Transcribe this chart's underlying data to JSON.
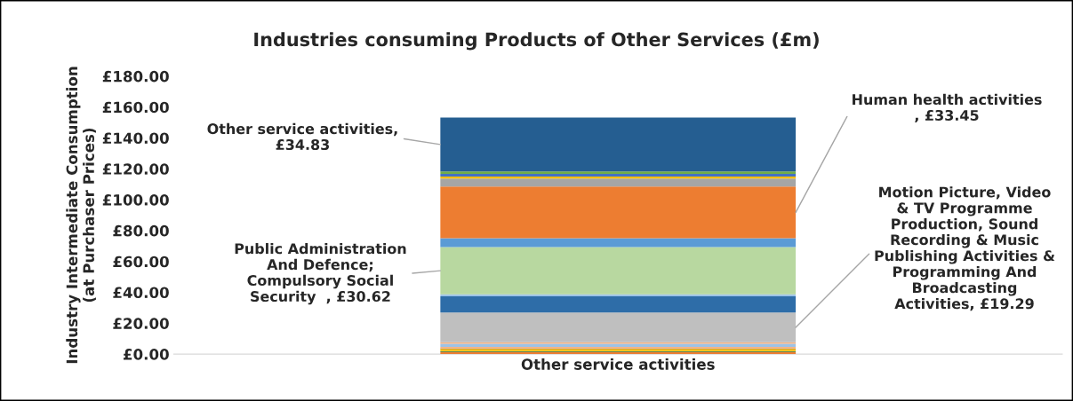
{
  "chart_data": {
    "type": "bar",
    "stacked": true,
    "title": "Industries consuming Products of Other Services (£m)",
    "ylabel": "Industry Intermediate Consumption\n(at Purchaser Prices)",
    "categories": [
      "Other service activities"
    ],
    "ylim": [
      0,
      180
    ],
    "yticks": [
      {
        "value": 0,
        "label": "£0.00"
      },
      {
        "value": 20,
        "label": "£20.00"
      },
      {
        "value": 40,
        "label": "£40.00"
      },
      {
        "value": 60,
        "label": "£60.00"
      },
      {
        "value": 80,
        "label": "£80.00"
      },
      {
        "value": 100,
        "label": "£100.00"
      },
      {
        "value": 120,
        "label": "£120.00"
      },
      {
        "value": 140,
        "label": "£140.00"
      },
      {
        "value": 160,
        "label": "£160.00"
      },
      {
        "value": 180,
        "label": "£180.00"
      }
    ],
    "grid": false,
    "legend": false,
    "series": [
      {
        "color": "#ed7d31",
        "values": [
          1.3
        ]
      },
      {
        "color": "#2e6b2e",
        "values": [
          0.6
        ]
      },
      {
        "color": "#ffc000",
        "values": [
          1.3
        ]
      },
      {
        "color": "#997300",
        "values": [
          0.4
        ]
      },
      {
        "color": "#f4b183",
        "values": [
          1.0
        ]
      },
      {
        "color": "#9dc3e6",
        "values": [
          2.1
        ]
      },
      {
        "color": "#f4b183",
        "values": [
          1.0
        ]
      },
      {
        "color": "#bfbfbf",
        "values": [
          19.29
        ],
        "value_labels": [
          "Motion Picture, Video\n& TV Programme\nProduction, Sound\nRecording & Music\nPublishing Activities &\nProgramming And\nBroadcasting\nActivities, £19.29"
        ]
      },
      {
        "color": "#2e6da8",
        "values": [
          10.4
        ]
      },
      {
        "color": "#9dc3e6",
        "values": [
          1.3
        ]
      },
      {
        "color": "#b8d8a0",
        "values": [
          30.62
        ],
        "value_labels": [
          "Public Administration\nAnd Defence;\nCompulsory Social\nSecurity  , £30.62"
        ]
      },
      {
        "color": "#5b9bd5",
        "values": [
          5.8
        ]
      },
      {
        "color": "#ed7d31",
        "values": [
          33.45
        ],
        "value_labels": [
          "Human health activities\n, £33.45"
        ]
      },
      {
        "color": "#a5a5a5",
        "values": [
          5.2
        ]
      },
      {
        "color": "#ffc000",
        "values": [
          1.2
        ]
      },
      {
        "color": "#4472c4",
        "values": [
          1.7
        ]
      },
      {
        "color": "#70ad47",
        "values": [
          1.7
        ]
      },
      {
        "color": "#255e91",
        "values": [
          34.83
        ],
        "value_labels": [
          "Other service activities,\n£34.83"
        ]
      }
    ]
  }
}
